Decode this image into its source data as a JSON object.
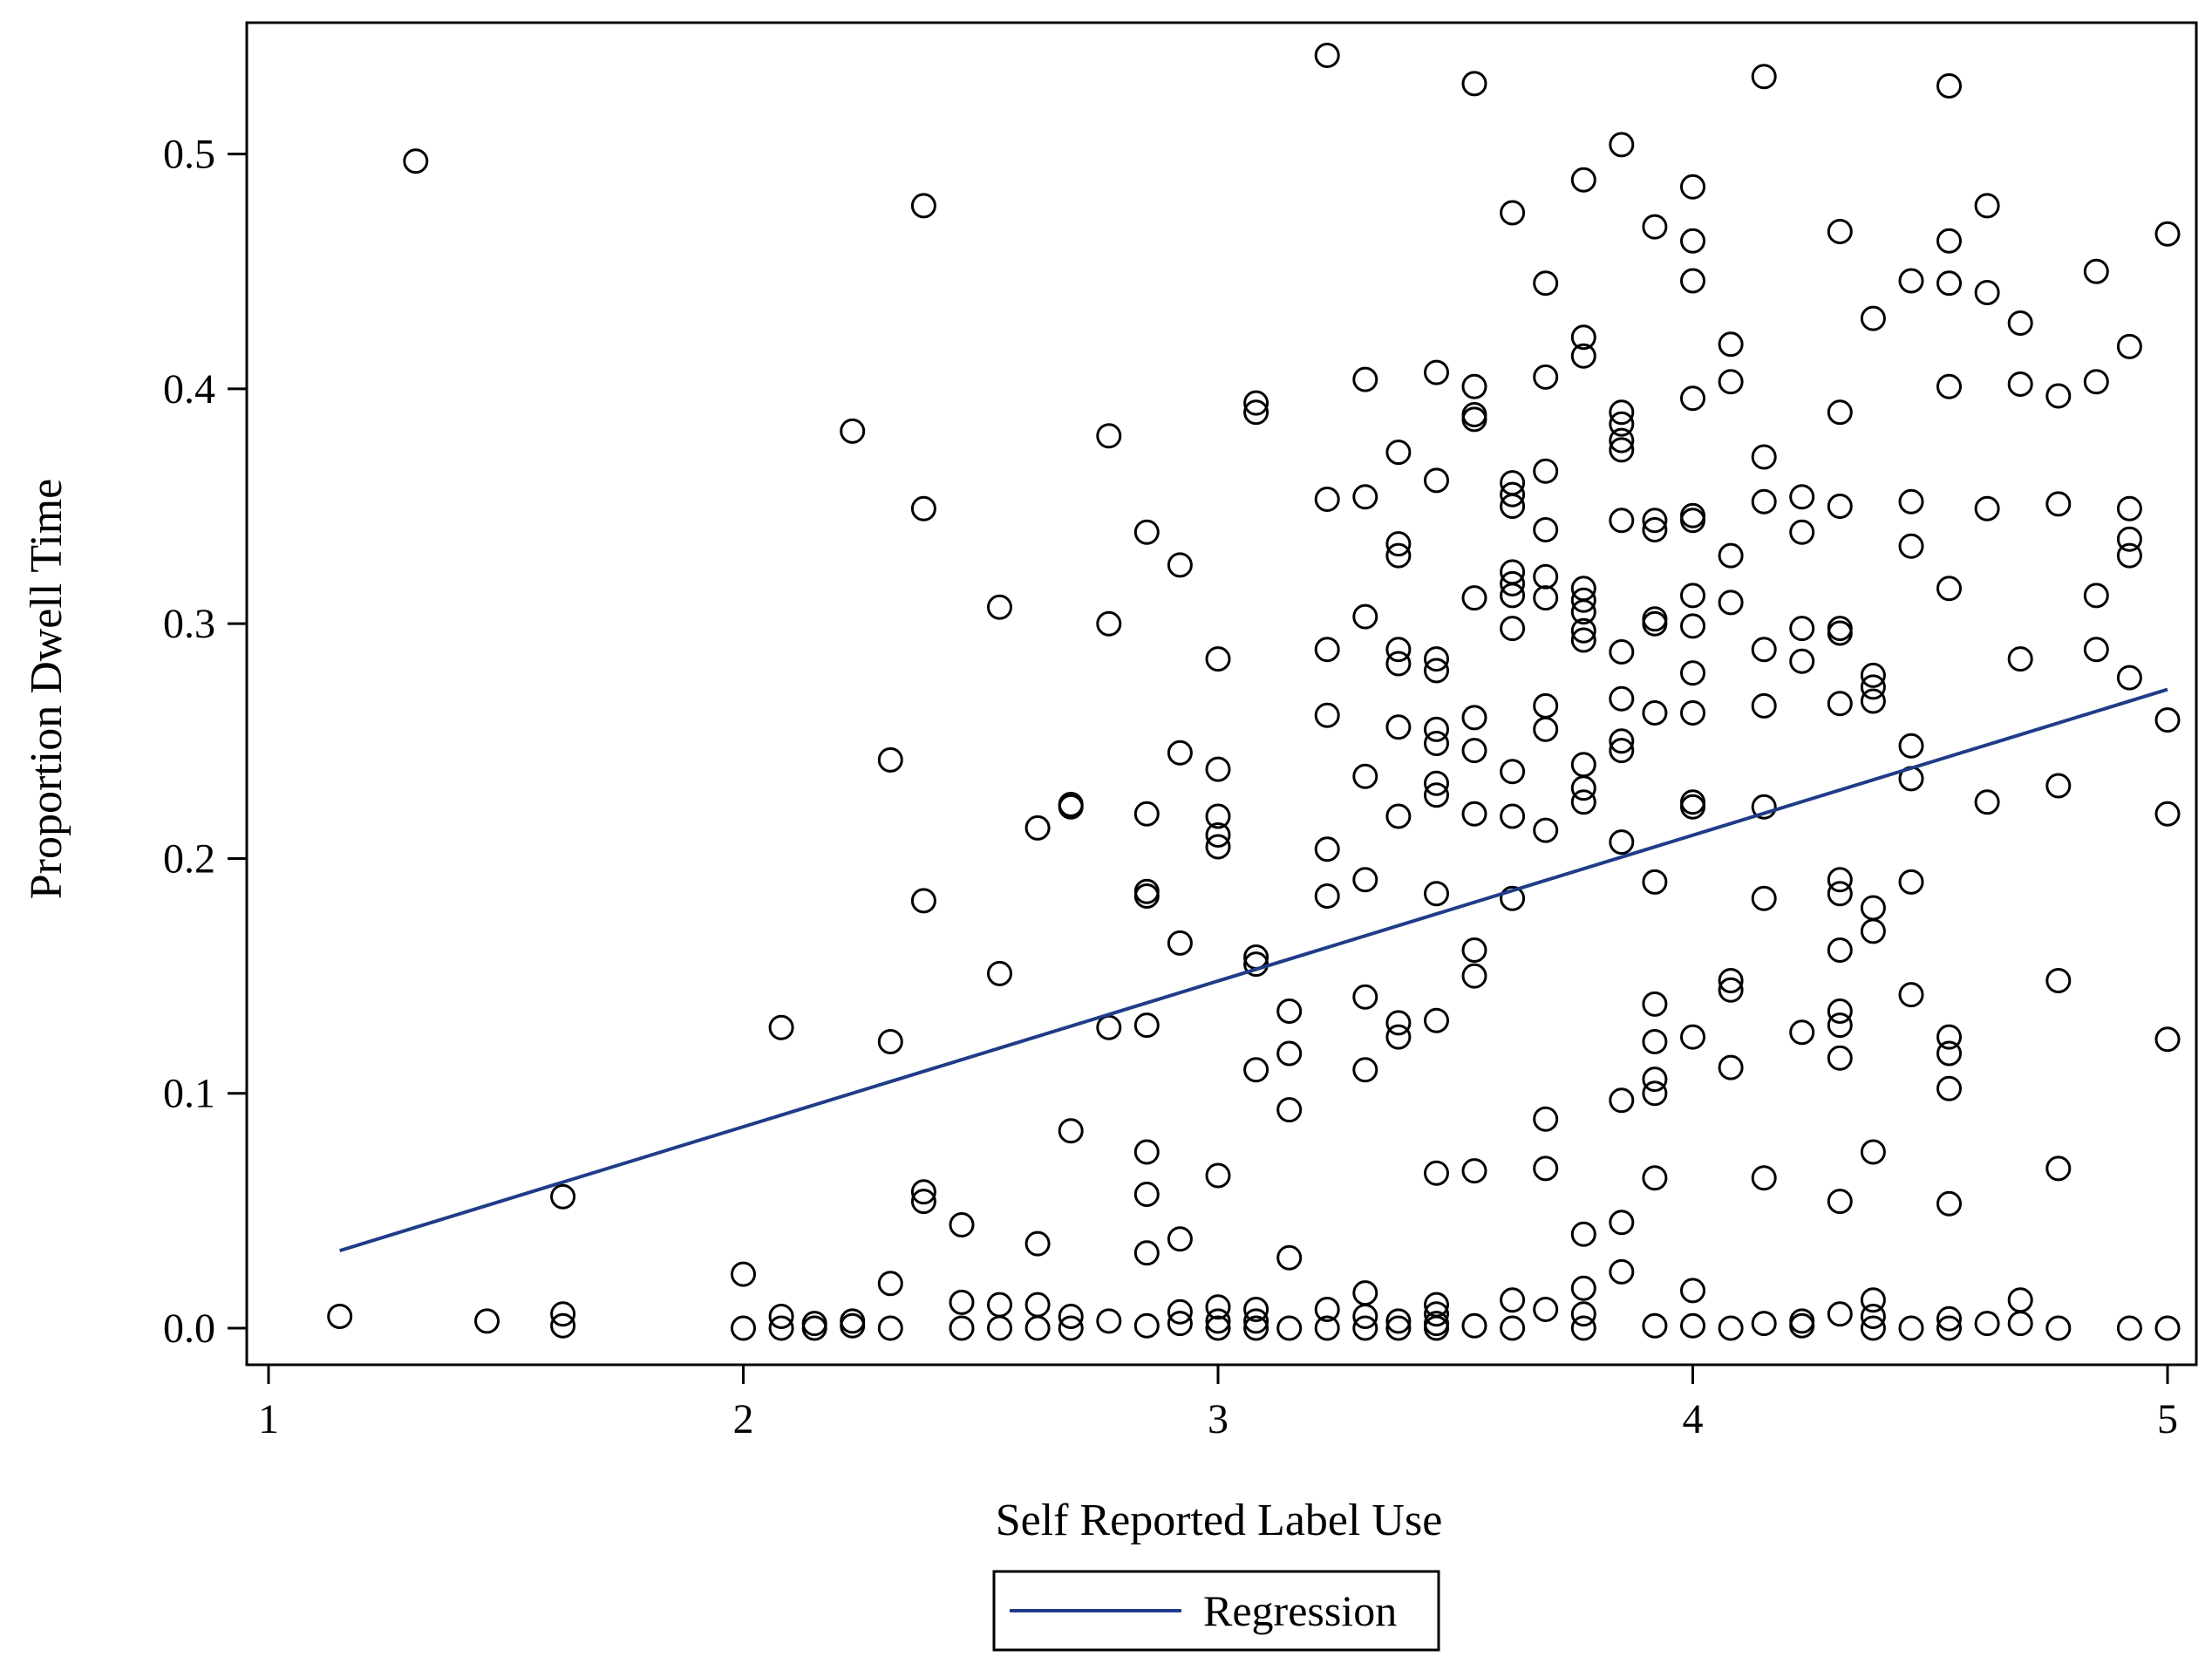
{
  "chart_data": {
    "type": "scatter",
    "xlabel": "Self Reported Label Use",
    "ylabel": "Proportion Dwell Time",
    "xlim": [
      1,
      5
    ],
    "ylim": [
      0,
      0.55
    ],
    "xticks": [
      "1",
      "2",
      "3",
      "4",
      "5"
    ],
    "yticks": [
      "0.0",
      "0.1",
      "0.2",
      "0.3",
      "0.4",
      "0.5"
    ],
    "legend": {
      "placement": "bottom-center",
      "entries": [
        "Regression"
      ]
    },
    "colors": {
      "points": "#000000",
      "regression": "#1f3c88"
    },
    "regression": {
      "x": [
        1.15,
        5.0
      ],
      "y": [
        0.033,
        0.272
      ]
    },
    "points": [
      [
        1.15,
        0.005
      ],
      [
        1.31,
        0.497
      ],
      [
        1.46,
        0.003
      ],
      [
        1.62,
        0.006
      ],
      [
        1.62,
        0.001
      ],
      [
        1.62,
        0.056
      ],
      [
        2.0,
        0.023
      ],
      [
        2.0,
        0.0
      ],
      [
        2.08,
        0.128
      ],
      [
        2.08,
        0.005
      ],
      [
        2.08,
        0.0
      ],
      [
        2.15,
        0.002
      ],
      [
        2.15,
        0.0
      ],
      [
        2.23,
        0.382
      ],
      [
        2.23,
        0.003
      ],
      [
        2.23,
        0.001
      ],
      [
        2.31,
        0.242
      ],
      [
        2.31,
        0.122
      ],
      [
        2.31,
        0.019
      ],
      [
        2.31,
        0.0
      ],
      [
        2.38,
        0.478
      ],
      [
        2.38,
        0.349
      ],
      [
        2.38,
        0.182
      ],
      [
        2.38,
        0.058
      ],
      [
        2.38,
        0.054
      ],
      [
        2.46,
        0.044
      ],
      [
        2.46,
        0.011
      ],
      [
        2.46,
        0.0
      ],
      [
        2.54,
        0.307
      ],
      [
        2.54,
        0.151
      ],
      [
        2.54,
        0.01
      ],
      [
        2.54,
        0.0
      ],
      [
        2.62,
        0.213
      ],
      [
        2.62,
        0.036
      ],
      [
        2.62,
        0.01
      ],
      [
        2.62,
        0.0
      ],
      [
        2.69,
        0.223
      ],
      [
        2.69,
        0.222
      ],
      [
        2.69,
        0.084
      ],
      [
        2.69,
        0.005
      ],
      [
        2.69,
        0.0
      ],
      [
        2.77,
        0.38
      ],
      [
        2.77,
        0.3
      ],
      [
        2.77,
        0.128
      ],
      [
        2.77,
        0.003
      ],
      [
        2.85,
        0.339
      ],
      [
        2.85,
        0.219
      ],
      [
        2.85,
        0.186
      ],
      [
        2.85,
        0.184
      ],
      [
        2.85,
        0.129
      ],
      [
        2.85,
        0.075
      ],
      [
        2.85,
        0.057
      ],
      [
        2.85,
        0.032
      ],
      [
        2.85,
        0.001
      ],
      [
        2.92,
        0.325
      ],
      [
        2.92,
        0.245
      ],
      [
        2.92,
        0.164
      ],
      [
        2.92,
        0.038
      ],
      [
        2.92,
        0.007
      ],
      [
        2.92,
        0.002
      ],
      [
        3.0,
        0.285
      ],
      [
        3.0,
        0.238
      ],
      [
        3.0,
        0.218
      ],
      [
        3.0,
        0.21
      ],
      [
        3.0,
        0.205
      ],
      [
        3.0,
        0.065
      ],
      [
        3.0,
        0.009
      ],
      [
        3.0,
        0.003
      ],
      [
        3.0,
        0.0
      ],
      [
        3.08,
        0.394
      ],
      [
        3.08,
        0.39
      ],
      [
        3.08,
        0.158
      ],
      [
        3.08,
        0.155
      ],
      [
        3.08,
        0.11
      ],
      [
        3.08,
        0.008
      ],
      [
        3.08,
        0.003
      ],
      [
        3.08,
        0.0
      ],
      [
        3.15,
        0.135
      ],
      [
        3.15,
        0.117
      ],
      [
        3.15,
        0.093
      ],
      [
        3.15,
        0.03
      ],
      [
        3.15,
        0.0
      ],
      [
        3.23,
        0.542
      ],
      [
        3.23,
        0.353
      ],
      [
        3.23,
        0.289
      ],
      [
        3.23,
        0.261
      ],
      [
        3.23,
        0.204
      ],
      [
        3.23,
        0.184
      ],
      [
        3.23,
        0.008
      ],
      [
        3.23,
        0.0
      ],
      [
        3.31,
        0.404
      ],
      [
        3.31,
        0.354
      ],
      [
        3.31,
        0.303
      ],
      [
        3.31,
        0.235
      ],
      [
        3.31,
        0.191
      ],
      [
        3.31,
        0.141
      ],
      [
        3.31,
        0.11
      ],
      [
        3.31,
        0.015
      ],
      [
        3.31,
        0.005
      ],
      [
        3.31,
        0.0
      ],
      [
        3.38,
        0.373
      ],
      [
        3.38,
        0.334
      ],
      [
        3.38,
        0.329
      ],
      [
        3.38,
        0.289
      ],
      [
        3.38,
        0.283
      ],
      [
        3.38,
        0.256
      ],
      [
        3.38,
        0.218
      ],
      [
        3.38,
        0.13
      ],
      [
        3.38,
        0.124
      ],
      [
        3.38,
        0.003
      ],
      [
        3.38,
        0.0
      ],
      [
        3.46,
        0.407
      ],
      [
        3.46,
        0.361
      ],
      [
        3.46,
        0.285
      ],
      [
        3.46,
        0.28
      ],
      [
        3.46,
        0.255
      ],
      [
        3.46,
        0.249
      ],
      [
        3.46,
        0.232
      ],
      [
        3.46,
        0.227
      ],
      [
        3.46,
        0.185
      ],
      [
        3.46,
        0.131
      ],
      [
        3.46,
        0.066
      ],
      [
        3.46,
        0.01
      ],
      [
        3.46,
        0.006
      ],
      [
        3.46,
        0.002
      ],
      [
        3.46,
        0.0
      ],
      [
        3.54,
        0.53
      ],
      [
        3.54,
        0.401
      ],
      [
        3.54,
        0.389
      ],
      [
        3.54,
        0.387
      ],
      [
        3.54,
        0.311
      ],
      [
        3.54,
        0.26
      ],
      [
        3.54,
        0.246
      ],
      [
        3.54,
        0.219
      ],
      [
        3.54,
        0.161
      ],
      [
        3.54,
        0.15
      ],
      [
        3.54,
        0.067
      ],
      [
        3.54,
        0.001
      ],
      [
        3.62,
        0.475
      ],
      [
        3.62,
        0.36
      ],
      [
        3.62,
        0.355
      ],
      [
        3.62,
        0.35
      ],
      [
        3.62,
        0.322
      ],
      [
        3.62,
        0.317
      ],
      [
        3.62,
        0.312
      ],
      [
        3.62,
        0.298
      ],
      [
        3.62,
        0.237
      ],
      [
        3.62,
        0.218
      ],
      [
        3.62,
        0.183
      ],
      [
        3.62,
        0.012
      ],
      [
        3.62,
        0.0
      ],
      [
        3.69,
        0.445
      ],
      [
        3.69,
        0.405
      ],
      [
        3.69,
        0.365
      ],
      [
        3.69,
        0.34
      ],
      [
        3.69,
        0.32
      ],
      [
        3.69,
        0.311
      ],
      [
        3.69,
        0.265
      ],
      [
        3.69,
        0.255
      ],
      [
        3.69,
        0.212
      ],
      [
        3.69,
        0.089
      ],
      [
        3.69,
        0.068
      ],
      [
        3.69,
        0.008
      ],
      [
        3.77,
        0.489
      ],
      [
        3.77,
        0.422
      ],
      [
        3.77,
        0.414
      ],
      [
        3.77,
        0.315
      ],
      [
        3.77,
        0.31
      ],
      [
        3.77,
        0.305
      ],
      [
        3.77,
        0.297
      ],
      [
        3.77,
        0.293
      ],
      [
        3.77,
        0.24
      ],
      [
        3.77,
        0.23
      ],
      [
        3.77,
        0.224
      ],
      [
        3.77,
        0.04
      ],
      [
        3.77,
        0.017
      ],
      [
        3.77,
        0.006
      ],
      [
        3.77,
        0.0
      ],
      [
        3.85,
        0.504
      ],
      [
        3.85,
        0.39
      ],
      [
        3.85,
        0.385
      ],
      [
        3.85,
        0.378
      ],
      [
        3.85,
        0.374
      ],
      [
        3.85,
        0.344
      ],
      [
        3.85,
        0.288
      ],
      [
        3.85,
        0.268
      ],
      [
        3.85,
        0.25
      ],
      [
        3.85,
        0.246
      ],
      [
        3.85,
        0.207
      ],
      [
        3.85,
        0.097
      ],
      [
        3.85,
        0.045
      ],
      [
        3.85,
        0.024
      ],
      [
        3.92,
        0.469
      ],
      [
        3.92,
        0.344
      ],
      [
        3.92,
        0.34
      ],
      [
        3.92,
        0.302
      ],
      [
        3.92,
        0.3
      ],
      [
        3.92,
        0.262
      ],
      [
        3.92,
        0.19
      ],
      [
        3.92,
        0.138
      ],
      [
        3.92,
        0.122
      ],
      [
        3.92,
        0.106
      ],
      [
        3.92,
        0.1
      ],
      [
        3.92,
        0.064
      ],
      [
        3.92,
        0.001
      ],
      [
        4.0,
        0.486
      ],
      [
        4.0,
        0.463
      ],
      [
        4.0,
        0.446
      ],
      [
        4.0,
        0.396
      ],
      [
        4.0,
        0.346
      ],
      [
        4.0,
        0.344
      ],
      [
        4.0,
        0.312
      ],
      [
        4.0,
        0.299
      ],
      [
        4.0,
        0.279
      ],
      [
        4.0,
        0.262
      ],
      [
        4.0,
        0.224
      ],
      [
        4.0,
        0.222
      ],
      [
        4.0,
        0.124
      ],
      [
        4.0,
        0.016
      ],
      [
        4.0,
        0.001
      ],
      [
        4.08,
        0.419
      ],
      [
        4.08,
        0.403
      ],
      [
        4.08,
        0.329
      ],
      [
        4.08,
        0.309
      ],
      [
        4.08,
        0.148
      ],
      [
        4.08,
        0.144
      ],
      [
        4.08,
        0.111
      ],
      [
        4.08,
        0.0
      ],
      [
        4.15,
        0.533
      ],
      [
        4.15,
        0.371
      ],
      [
        4.15,
        0.352
      ],
      [
        4.15,
        0.289
      ],
      [
        4.15,
        0.265
      ],
      [
        4.15,
        0.222
      ],
      [
        4.15,
        0.183
      ],
      [
        4.15,
        0.064
      ],
      [
        4.15,
        0.002
      ],
      [
        4.23,
        0.354
      ],
      [
        4.23,
        0.339
      ],
      [
        4.23,
        0.298
      ],
      [
        4.23,
        0.284
      ],
      [
        4.23,
        0.126
      ],
      [
        4.23,
        0.003
      ],
      [
        4.23,
        0.001
      ],
      [
        4.31,
        0.467
      ],
      [
        4.31,
        0.39
      ],
      [
        4.31,
        0.35
      ],
      [
        4.31,
        0.298
      ],
      [
        4.31,
        0.296
      ],
      [
        4.31,
        0.266
      ],
      [
        4.31,
        0.191
      ],
      [
        4.31,
        0.185
      ],
      [
        4.31,
        0.161
      ],
      [
        4.31,
        0.135
      ],
      [
        4.31,
        0.129
      ],
      [
        4.31,
        0.115
      ],
      [
        4.31,
        0.054
      ],
      [
        4.31,
        0.006
      ],
      [
        4.38,
        0.43
      ],
      [
        4.38,
        0.278
      ],
      [
        4.38,
        0.273
      ],
      [
        4.38,
        0.267
      ],
      [
        4.38,
        0.179
      ],
      [
        4.38,
        0.169
      ],
      [
        4.38,
        0.075
      ],
      [
        4.38,
        0.012
      ],
      [
        4.38,
        0.005
      ],
      [
        4.38,
        0.0
      ],
      [
        4.46,
        0.446
      ],
      [
        4.46,
        0.352
      ],
      [
        4.46,
        0.333
      ],
      [
        4.46,
        0.248
      ],
      [
        4.46,
        0.234
      ],
      [
        4.46,
        0.19
      ],
      [
        4.46,
        0.142
      ],
      [
        4.46,
        0.0
      ],
      [
        4.54,
        0.529
      ],
      [
        4.54,
        0.463
      ],
      [
        4.54,
        0.445
      ],
      [
        4.54,
        0.401
      ],
      [
        4.54,
        0.315
      ],
      [
        4.54,
        0.124
      ],
      [
        4.54,
        0.117
      ],
      [
        4.54,
        0.102
      ],
      [
        4.54,
        0.053
      ],
      [
        4.54,
        0.004
      ],
      [
        4.54,
        0.0
      ],
      [
        4.62,
        0.478
      ],
      [
        4.62,
        0.441
      ],
      [
        4.62,
        0.349
      ],
      [
        4.62,
        0.224
      ],
      [
        4.62,
        0.002
      ],
      [
        4.69,
        0.428
      ],
      [
        4.69,
        0.402
      ],
      [
        4.69,
        0.285
      ],
      [
        4.69,
        0.012
      ],
      [
        4.69,
        0.002
      ],
      [
        4.77,
        0.397
      ],
      [
        4.77,
        0.351
      ],
      [
        4.77,
        0.231
      ],
      [
        4.77,
        0.148
      ],
      [
        4.77,
        0.068
      ],
      [
        4.77,
        0.0
      ],
      [
        4.85,
        0.45
      ],
      [
        4.85,
        0.403
      ],
      [
        4.85,
        0.312
      ],
      [
        4.85,
        0.289
      ],
      [
        4.92,
        0.418
      ],
      [
        4.92,
        0.349
      ],
      [
        4.92,
        0.336
      ],
      [
        4.92,
        0.329
      ],
      [
        4.92,
        0.277
      ],
      [
        4.92,
        0.0
      ],
      [
        5.0,
        0.466
      ],
      [
        5.0,
        0.259
      ],
      [
        5.0,
        0.219
      ],
      [
        5.0,
        0.123
      ],
      [
        5.0,
        0.0
      ]
    ]
  }
}
